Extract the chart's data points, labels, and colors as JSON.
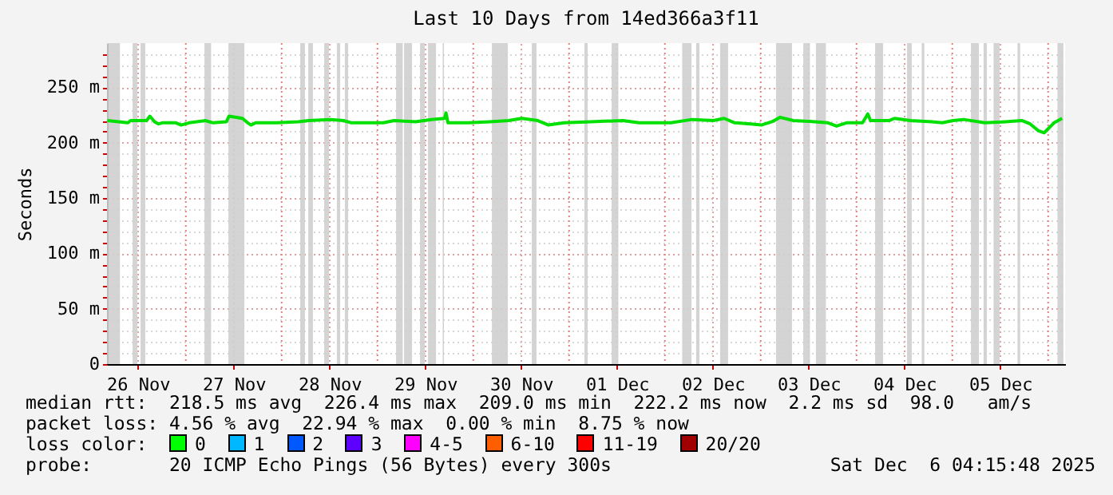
{
  "chart_data": {
    "type": "line",
    "title": "Last 10 Days from 14ed366a3f11",
    "ylabel": "Seconds",
    "xlim": [
      "2025-11-26T04:15",
      "2025-12-06T04:15"
    ],
    "xticks": [
      {
        "value": "2025-11-26T12:00",
        "label": "26 Nov"
      },
      {
        "value": "2025-11-27T00:00",
        "label": null
      },
      {
        "value": "2025-11-27T12:00",
        "label": "27 Nov"
      },
      {
        "value": "2025-11-28T00:00",
        "label": null
      },
      {
        "value": "2025-11-28T12:00",
        "label": "28 Nov"
      },
      {
        "value": "2025-11-29T00:00",
        "label": null
      },
      {
        "value": "2025-11-29T12:00",
        "label": "29 Nov"
      },
      {
        "value": "2025-11-30T00:00",
        "label": null
      },
      {
        "value": "2025-11-30T12:00",
        "label": "30 Nov"
      },
      {
        "value": "2025-12-01T00:00",
        "label": null
      },
      {
        "value": "2025-12-01T12:00",
        "label": "01 Dec"
      },
      {
        "value": "2025-12-02T00:00",
        "label": null
      },
      {
        "value": "2025-12-02T12:00",
        "label": "02 Dec"
      },
      {
        "value": "2025-12-03T00:00",
        "label": null
      },
      {
        "value": "2025-12-03T12:00",
        "label": "03 Dec"
      },
      {
        "value": "2025-12-04T00:00",
        "label": null
      },
      {
        "value": "2025-12-04T12:00",
        "label": "04 Dec"
      },
      {
        "value": "2025-12-05T00:00",
        "label": null
      },
      {
        "value": "2025-12-05T12:00",
        "label": "05 Dec"
      },
      {
        "value": "2025-12-06T00:00",
        "label": null
      }
    ],
    "ylim": [
      0,
      290
    ],
    "yticks": [
      0,
      {
        "value": 10,
        "label": null
      },
      {
        "value": 20,
        "label": null
      },
      {
        "value": 30,
        "label": null
      },
      {
        "value": 40,
        "label": null
      },
      {
        "value": 50,
        "label": "50 m"
      },
      {
        "value": 60,
        "label": null
      },
      {
        "value": 70,
        "label": null
      },
      {
        "value": 80,
        "label": null
      },
      {
        "value": 90,
        "label": null
      },
      {
        "value": 100,
        "label": "100 m"
      },
      {
        "value": 110,
        "label": null
      },
      {
        "value": 120,
        "label": null
      },
      {
        "value": 130,
        "label": null
      },
      {
        "value": 140,
        "label": null
      },
      {
        "value": 150,
        "label": "150 m"
      },
      {
        "value": 160,
        "label": null
      },
      {
        "value": 170,
        "label": null
      },
      {
        "value": 180,
        "label": null
      },
      {
        "value": 190,
        "label": null
      },
      {
        "value": 200,
        "label": "200 m"
      },
      {
        "value": 210,
        "label": null
      },
      {
        "value": 220,
        "label": null
      },
      {
        "value": 230,
        "label": null
      },
      {
        "value": 240,
        "label": null
      },
      {
        "value": 250,
        "label": "250 m"
      },
      {
        "value": 260,
        "label": null
      },
      {
        "value": 270,
        "label": null
      },
      {
        "value": 280,
        "label": null
      }
    ],
    "grid": true,
    "marker": "none",
    "line_style": "solid",
    "series": [
      {
        "color": "#00e000",
        "x": [
          "2025-11-26T04:20",
          "2025-11-26T09:30",
          "2025-11-26T10:10",
          "2025-11-26T14:10",
          "2025-11-26T15:00",
          "2025-11-26T16:10",
          "2025-11-26T17:10",
          "2025-11-26T18:10",
          "2025-11-26T21:30",
          "2025-11-26T22:50",
          "2025-11-27T00:50",
          "2025-11-27T04:50",
          "2025-11-27T06:50",
          "2025-11-27T10:10",
          "2025-11-27T10:50",
          "2025-11-27T14:10",
          "2025-11-27T15:30",
          "2025-11-27T16:20",
          "2025-11-27T17:30",
          "2025-11-27T22:50",
          "2025-11-28T04:10",
          "2025-11-28T06:50",
          "2025-11-28T12:10",
          "2025-11-28T15:30",
          "2025-11-28T17:30",
          "2025-11-29T01:30",
          "2025-11-29T04:10",
          "2025-11-29T09:30",
          "2025-11-29T13:30",
          "2025-11-29T16:50",
          "2025-11-29T17:10",
          "2025-11-29T17:40",
          "2025-11-29T22:50",
          "2025-11-30T04:10",
          "2025-11-30T08:50",
          "2025-11-30T12:10",
          "2025-11-30T16:10",
          "2025-11-30T18:50",
          "2025-11-30T22:50",
          "2025-12-01T05:30",
          "2025-12-01T13:30",
          "2025-12-01T17:30",
          "2025-12-02T01:30",
          "2025-12-02T06:50",
          "2025-12-02T12:10",
          "2025-12-02T14:50",
          "2025-12-02T17:30",
          "2025-12-02T21:30",
          "2025-12-03T00:10",
          "2025-12-03T02:50",
          "2025-12-03T04:50",
          "2025-12-03T08:10",
          "2025-12-03T13:30",
          "2025-12-03T16:50",
          "2025-12-03T19:00",
          "2025-12-03T21:30",
          "2025-12-04T01:30",
          "2025-12-04T02:50",
          "2025-12-04T03:30",
          "2025-12-04T08:10",
          "2025-12-04T09:30",
          "2025-12-04T13:30",
          "2025-12-04T18:50",
          "2025-12-04T21:30",
          "2025-12-05T00:10",
          "2025-12-05T02:50",
          "2025-12-05T08:10",
          "2025-12-05T13:30",
          "2025-12-05T17:30",
          "2025-12-05T19:30",
          "2025-12-05T21:30",
          "2025-12-05T23:00",
          "2025-12-06T01:30",
          "2025-12-06T03:30"
        ],
        "values": [
          220,
          218,
          220,
          220,
          224,
          219,
          217,
          218,
          218,
          216,
          218,
          220,
          218,
          219,
          224,
          222,
          218,
          216,
          218,
          218,
          219,
          220,
          221,
          220,
          218,
          218,
          220,
          219,
          221,
          222,
          227,
          218,
          218,
          219,
          220,
          222,
          220,
          216,
          218,
          219,
          220,
          218,
          218,
          221,
          220,
          222,
          218,
          217,
          216,
          219,
          223,
          220,
          219,
          218,
          215,
          218,
          218,
          226,
          220,
          220,
          222,
          220,
          219,
          218,
          220,
          221,
          218,
          219,
          220,
          217,
          211,
          209,
          218,
          222
        ]
      }
    ],
    "bands": [
      {
        "axis": "x",
        "from": "2025-11-26T04:15",
        "to": "2025-11-26T07:30"
      },
      {
        "axis": "x",
        "from": "2025-11-26T10:40",
        "to": "2025-11-26T11:50"
      },
      {
        "axis": "x",
        "from": "2025-11-26T12:40",
        "to": "2025-11-26T13:50"
      },
      {
        "axis": "x",
        "from": "2025-11-27T04:40",
        "to": "2025-11-27T06:20"
      },
      {
        "axis": "x",
        "from": "2025-11-27T10:40",
        "to": "2025-11-27T14:40"
      },
      {
        "axis": "x",
        "from": "2025-11-28T04:40",
        "to": "2025-11-28T05:50"
      },
      {
        "axis": "x",
        "from": "2025-11-28T06:40",
        "to": "2025-11-28T07:50"
      },
      {
        "axis": "x",
        "from": "2025-11-28T10:40",
        "to": "2025-11-28T11:50"
      },
      {
        "axis": "x",
        "from": "2025-11-28T13:50",
        "to": "2025-11-28T14:40"
      },
      {
        "axis": "x",
        "from": "2025-11-28T15:50",
        "to": "2025-11-28T16:40"
      },
      {
        "axis": "x",
        "from": "2025-11-29T04:40",
        "to": "2025-11-29T06:20"
      },
      {
        "axis": "x",
        "from": "2025-11-29T06:40",
        "to": "2025-11-29T08:40"
      },
      {
        "axis": "x",
        "from": "2025-11-29T10:40",
        "to": "2025-11-29T11:50"
      },
      {
        "axis": "x",
        "from": "2025-11-29T12:40",
        "to": "2025-11-29T14:40"
      },
      {
        "axis": "x",
        "from": "2025-11-29T16:20",
        "to": "2025-11-29T16:40"
      },
      {
        "axis": "x",
        "from": "2025-11-30T04:40",
        "to": "2025-11-30T08:40"
      },
      {
        "axis": "x",
        "from": "2025-11-30T14:40",
        "to": "2025-11-30T15:50"
      },
      {
        "axis": "x",
        "from": "2025-12-01T03:50",
        "to": "2025-12-01T04:40"
      },
      {
        "axis": "x",
        "from": "2025-12-01T10:40",
        "to": "2025-12-01T12:20"
      },
      {
        "axis": "x",
        "from": "2025-12-02T04:20",
        "to": "2025-12-02T06:40"
      },
      {
        "axis": "x",
        "from": "2025-12-02T07:50",
        "to": "2025-12-02T08:40"
      },
      {
        "axis": "x",
        "from": "2025-12-02T13:50",
        "to": "2025-12-02T15:50"
      },
      {
        "axis": "x",
        "from": "2025-12-03T03:50",
        "to": "2025-12-03T07:50"
      },
      {
        "axis": "x",
        "from": "2025-12-03T10:40",
        "to": "2025-12-03T12:20"
      },
      {
        "axis": "x",
        "from": "2025-12-03T13:50",
        "to": "2025-12-03T16:20"
      },
      {
        "axis": "x",
        "from": "2025-12-04T04:40",
        "to": "2025-12-04T06:40"
      },
      {
        "axis": "x",
        "from": "2025-12-04T12:40",
        "to": "2025-12-04T13:50"
      },
      {
        "axis": "x",
        "from": "2025-12-04T16:20",
        "to": "2025-12-04T17:00"
      },
      {
        "axis": "x",
        "from": "2025-12-05T04:40",
        "to": "2025-12-05T06:40"
      },
      {
        "axis": "x",
        "from": "2025-12-05T07:50",
        "to": "2025-12-05T08:40"
      },
      {
        "axis": "x",
        "from": "2025-12-05T10:20",
        "to": "2025-12-05T11:50"
      },
      {
        "axis": "x",
        "from": "2025-12-05T16:20",
        "to": "2025-12-05T17:00"
      },
      {
        "axis": "x",
        "from": "2025-12-06T02:20",
        "to": "2025-12-06T03:50"
      }
    ],
    "annotations": [
      "median rtt:  218.5 ms avg  226.4 ms max  209.0 ms min  222.2 ms now  2.2 ms sd  98.0   am/s",
      "packet loss: 4.56 % avg  22.94 % max  0.00 % min  8.75 % now",
      "loss color:  0  1  2  3  4-5  6-10  11-19  20/20",
      "probe:       20 ICMP Echo Pings (56 Bytes) every 300s",
      "Sat Dec  6 04:15:48 2025"
    ]
  }
}
